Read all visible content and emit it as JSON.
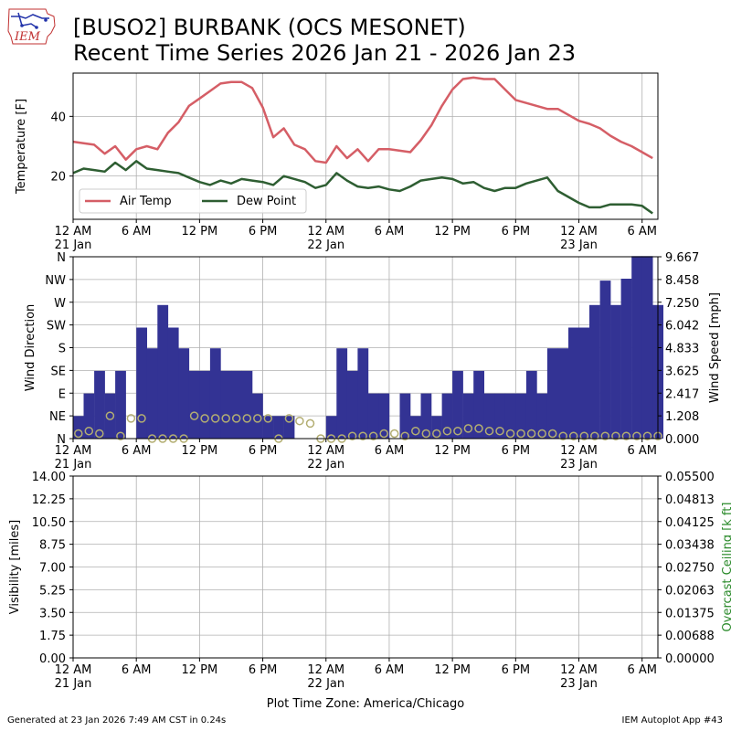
{
  "header": {
    "title_line1": "[BUSO2] BURBANK (OCS MESONET)",
    "title_line2": "Recent Time Series 2026 Jan 21 - 2026 Jan 23",
    "logo_text": "IEM"
  },
  "footer": {
    "generated": "Generated at 23 Jan 2026 7:49 AM CST in 0.24s",
    "app": "IEM Autoplot App #43",
    "timezone_label": "Plot Time Zone: America/Chicago"
  },
  "x_ticks": [
    {
      "h": 0,
      "label": "12 AM",
      "date": "21 Jan"
    },
    {
      "h": 6,
      "label": "6 AM"
    },
    {
      "h": 12,
      "label": "12 PM"
    },
    {
      "h": 18,
      "label": "6 PM"
    },
    {
      "h": 24,
      "label": "12 AM",
      "date": "22 Jan"
    },
    {
      "h": 30,
      "label": "6 AM"
    },
    {
      "h": 36,
      "label": "12 PM"
    },
    {
      "h": 42,
      "label": "6 PM"
    },
    {
      "h": 48,
      "label": "12 AM",
      "date": "23 Jan"
    },
    {
      "h": 54,
      "label": "6 AM"
    }
  ],
  "chart_data": [
    {
      "type": "line",
      "x_unit": "hours since 12 AM 21 Jan",
      "ylabel": "Temperature [F]",
      "yticks": [
        20,
        40
      ],
      "ylim": [
        5.5,
        54.5
      ],
      "legend_position": "lower-left",
      "grid": true,
      "series": [
        {
          "name": "Air Temp",
          "color": "#d55e66",
          "x": [
            0,
            1,
            2,
            3,
            4,
            5,
            6,
            7,
            8,
            9,
            10,
            11,
            12,
            13,
            14,
            15,
            16,
            17,
            18,
            19,
            20,
            21,
            22,
            23,
            24,
            25,
            26,
            27,
            28,
            29,
            30,
            31,
            32,
            33,
            34,
            35,
            36,
            37,
            38,
            39,
            40,
            41,
            42,
            43,
            44,
            45,
            46,
            47,
            48,
            49,
            50,
            51,
            52,
            53,
            54,
            55
          ],
          "y": [
            31.5,
            31,
            30.5,
            27.5,
            30,
            25.5,
            29,
            30,
            29,
            34.5,
            38,
            43.5,
            46,
            48.5,
            51,
            51.5,
            51.5,
            49.5,
            43,
            33,
            36,
            30.5,
            29,
            25,
            24.5,
            30,
            26,
            29,
            25,
            29,
            29,
            28.5,
            28,
            32,
            37,
            43.5,
            49,
            52.5,
            53,
            52.5,
            52.5,
            49,
            45.5,
            44.5,
            43.5,
            42.5,
            42.5,
            40.5,
            38.5,
            37.5,
            36,
            33.5,
            31.5,
            30,
            28,
            26
          ]
        },
        {
          "name": "Dew Point",
          "color": "#2e5e32",
          "x": [
            0,
            1,
            2,
            3,
            4,
            5,
            6,
            7,
            8,
            9,
            10,
            11,
            12,
            13,
            14,
            15,
            16,
            17,
            18,
            19,
            20,
            21,
            22,
            23,
            24,
            25,
            26,
            27,
            28,
            29,
            30,
            31,
            32,
            33,
            34,
            35,
            36,
            37,
            38,
            39,
            40,
            41,
            42,
            43,
            44,
            45,
            46,
            47,
            48,
            49,
            50,
            51,
            52,
            53,
            54,
            55
          ],
          "y": [
            21,
            22.5,
            22,
            21.5,
            24.5,
            22,
            25,
            22.5,
            22,
            21.5,
            21,
            19.5,
            18,
            17,
            18.5,
            17.5,
            19,
            18.5,
            18,
            17,
            20,
            19,
            18,
            16,
            17,
            21,
            18.5,
            16.5,
            16,
            16.5,
            15.5,
            15,
            16.5,
            18.5,
            19,
            19.5,
            19,
            17.5,
            18,
            16,
            15,
            16,
            16,
            17.5,
            18.5,
            19.5,
            15,
            13,
            11,
            9.5,
            9.5,
            10.5,
            10.5,
            10.5,
            10,
            7.5
          ]
        }
      ]
    },
    {
      "type": "bar",
      "x_unit": "hours since 12 AM 21 Jan",
      "ylabel": "Wind Direction",
      "ylabel_right": "Wind Speed [mph]",
      "direction_ticks": [
        "N",
        "NE",
        "E",
        "SE",
        "S",
        "SW",
        "W",
        "NW",
        "N"
      ],
      "speed_ticks": [
        "0.000",
        "1.208",
        "2.417",
        "3.625",
        "4.833",
        "6.042",
        "7.250",
        "8.458",
        "9.667"
      ],
      "speed_max": 9.667,
      "grid": true,
      "bars": {
        "color": "#333394",
        "x": [
          0,
          1,
          2,
          3,
          4,
          5,
          6,
          7,
          8,
          9,
          10,
          11,
          12,
          13,
          14,
          15,
          16,
          17,
          18,
          19,
          20,
          21,
          22,
          23,
          24,
          25,
          26,
          27,
          28,
          29,
          30,
          31,
          32,
          33,
          34,
          35,
          36,
          37,
          38,
          39,
          40,
          41,
          42,
          43,
          44,
          45,
          46,
          47,
          48,
          49,
          50,
          51,
          52,
          53,
          54,
          55
        ],
        "speed_mph": [
          1.2,
          2.4,
          3.6,
          2.4,
          3.6,
          0,
          5.9,
          4.8,
          7.1,
          5.9,
          4.8,
          3.6,
          3.6,
          4.8,
          3.6,
          3.6,
          3.6,
          2.4,
          1.2,
          1.2,
          1.2,
          0,
          0,
          0,
          1.2,
          4.8,
          3.6,
          4.8,
          2.4,
          2.4,
          0,
          2.4,
          1.2,
          2.4,
          1.2,
          2.4,
          3.6,
          2.4,
          3.6,
          2.4,
          2.4,
          2.4,
          2.4,
          3.6,
          2.4,
          4.8,
          4.8,
          5.9,
          5.9,
          7.1,
          8.4,
          7.1,
          8.5,
          9.7,
          9.7,
          7.1
        ]
      },
      "direction_points": {
        "color": "#b3ae72",
        "x": [
          0,
          1,
          2,
          3,
          4,
          5,
          6,
          7,
          8,
          9,
          10,
          11,
          12,
          13,
          14,
          15,
          16,
          17,
          18,
          19,
          20,
          21,
          22,
          23,
          24,
          25,
          26,
          27,
          28,
          29,
          30,
          31,
          32,
          33,
          34,
          35,
          36,
          37,
          38,
          39,
          40,
          41,
          42,
          43,
          44,
          45,
          46,
          47,
          48,
          49,
          50,
          51,
          52,
          53,
          54,
          55
        ],
        "direction_deg": [
          10,
          15,
          10,
          45,
          5,
          40,
          40,
          0,
          0,
          0,
          0,
          45,
          40,
          40,
          40,
          40,
          40,
          40,
          40,
          0,
          40,
          35,
          30,
          0,
          0,
          0,
          5,
          5,
          5,
          10,
          10,
          5,
          15,
          10,
          10,
          15,
          15,
          20,
          20,
          15,
          15,
          10,
          10,
          10,
          10,
          10,
          5,
          5,
          5,
          5,
          5,
          5,
          5,
          5,
          5,
          5
        ]
      }
    },
    {
      "type": "line",
      "x_unit": "hours since 12 AM 21 Jan",
      "ylabel": "Visibility [miles]",
      "ylabel_right": "Overcast Ceiling [k ft]",
      "yticks": [
        "0.00",
        "1.75",
        "3.50",
        "5.25",
        "7.00",
        "8.75",
        "10.50",
        "12.25",
        "14.00"
      ],
      "yticks_right": [
        "0.00000",
        "0.00688",
        "0.01375",
        "0.02063",
        "0.02750",
        "0.03438",
        "0.04125",
        "0.04813",
        "0.05500"
      ],
      "ylim": [
        0,
        14
      ],
      "ylim_right": [
        0,
        0.055
      ],
      "grid": true,
      "series": []
    }
  ]
}
